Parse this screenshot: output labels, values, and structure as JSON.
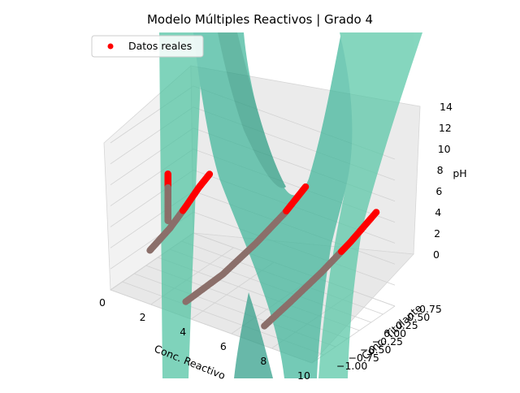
{
  "chart_data": {
    "type": "scatter",
    "title": "Modelo Múltiples Reactivos | Grado 4",
    "xlabel": "Conc. Reactivo",
    "ylabel": "Conc. Titulante",
    "zlabel": "pH",
    "xlim": [
      0,
      10
    ],
    "ylim": [
      -1.0,
      0.75
    ],
    "zlim": [
      0,
      14
    ],
    "xticks": [
      "0",
      "2",
      "4",
      "6",
      "8",
      "10"
    ],
    "yticks": [
      "−1.00",
      "−0.75",
      "−0.50",
      "−0.25",
      "0.00",
      "0.25",
      "0.50",
      "0.75"
    ],
    "zticks": [
      "0",
      "2",
      "4",
      "6",
      "8",
      "10",
      "12",
      "14"
    ],
    "grid": true,
    "legend": {
      "placement": "top-left",
      "entries": [
        "Datos reales"
      ]
    },
    "colors": {
      "points": "#ff0000",
      "surface": "#3cba9f",
      "points_behind": "#8b6f6a"
    },
    "series": [
      {
        "name": "Datos reales",
        "kind": "scatter",
        "points": [
          {
            "x": 0.5,
            "y": 0.0,
            "z": 8.3
          },
          {
            "x": 0.5,
            "y": 0.0,
            "z": 7.6
          },
          {
            "x": 0.5,
            "y": 0.0,
            "z": 6.8
          },
          {
            "x": 0.5,
            "y": 0.0,
            "z": 6.0
          },
          {
            "x": 0.5,
            "y": 0.0,
            "z": 4.6
          },
          {
            "x": 0.5,
            "y": 0.0,
            "z": 3.8
          },
          {
            "x": 0.9,
            "y": -0.55,
            "z": 3.0
          },
          {
            "x": 1.3,
            "y": -0.3,
            "z": 4.6
          },
          {
            "x": 1.6,
            "y": -0.1,
            "z": 6.2
          },
          {
            "x": 1.8,
            "y": 0.1,
            "z": 7.6
          },
          {
            "x": 2.0,
            "y": 0.25,
            "z": 8.6
          },
          {
            "x": 3.5,
            "y": -0.9,
            "z": 1.0
          },
          {
            "x": 4.4,
            "y": -0.5,
            "z": 3.0
          },
          {
            "x": 5.1,
            "y": -0.1,
            "z": 5.2
          },
          {
            "x": 5.7,
            "y": 0.25,
            "z": 7.4
          },
          {
            "x": 6.2,
            "y": 0.5,
            "z": 9.6
          },
          {
            "x": 7.4,
            "y": -0.9,
            "z": 1.4
          },
          {
            "x": 8.0,
            "y": -0.6,
            "z": 3.2
          },
          {
            "x": 8.6,
            "y": -0.2,
            "z": 5.2
          },
          {
            "x": 9.1,
            "y": 0.2,
            "z": 7.2
          },
          {
            "x": 9.6,
            "y": 0.55,
            "z": 9.4
          }
        ]
      }
    ],
    "surface": {
      "model": "polynomial",
      "degree": 4
    }
  }
}
